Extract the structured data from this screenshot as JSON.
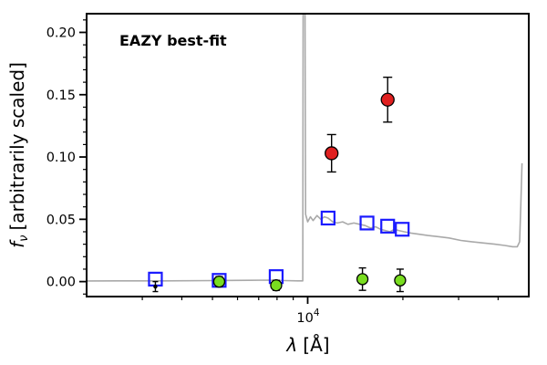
{
  "chart_data": {
    "type": "line+scatter",
    "annotation": "EAZY best-fit",
    "annotation_color": "#ee0000",
    "xlabel": {
      "symbol": "λ",
      "unit": "[Å]"
    },
    "ylabel": {
      "symbol": "f",
      "sub": "ν",
      "rest": "[arbitrarily scaled]"
    },
    "x_scale": "log",
    "xlim": [
      2000,
      50000
    ],
    "ylim": [
      -0.012,
      0.215
    ],
    "y_ticks": [
      0,
      0.05,
      0.1,
      0.15,
      0.2
    ],
    "y_tick_labels": [
      "0.00",
      "0.05",
      "0.10",
      "0.15",
      "0.20"
    ],
    "y_minor_ticks": [
      -0.01,
      0.01,
      0.02,
      0.03,
      0.04,
      0.06,
      0.07,
      0.08,
      0.09,
      0.11,
      0.12,
      0.13,
      0.14,
      0.16,
      0.17,
      0.18,
      0.19,
      0.21
    ],
    "x_major_tick": {
      "value": 10000,
      "base": "10",
      "exp": "4"
    },
    "x_minor_ticks": [
      3000,
      4000,
      5000,
      6000,
      7000,
      8000,
      9000,
      20000,
      30000,
      40000
    ],
    "series": [
      {
        "name": "model-spectrum",
        "kind": "line",
        "color": "#a9a9a9",
        "points": [
          [
            2000,
            0.0005
          ],
          [
            3500,
            0.0006
          ],
          [
            5000,
            0.0008
          ],
          [
            6500,
            0.001
          ],
          [
            7500,
            0.0012
          ],
          [
            8500,
            0.0008
          ],
          [
            9300,
            0.0006
          ],
          [
            9650,
            0.0006
          ],
          [
            9700,
            0.42
          ],
          [
            9760,
            0.42
          ],
          [
            9850,
            0.054
          ],
          [
            10000,
            0.048
          ],
          [
            10200,
            0.052
          ],
          [
            10400,
            0.049
          ],
          [
            10700,
            0.053
          ],
          [
            11000,
            0.05
          ],
          [
            11300,
            0.052
          ],
          [
            11600,
            0.051
          ],
          [
            12000,
            0.048
          ],
          [
            12400,
            0.047
          ],
          [
            12900,
            0.048
          ],
          [
            13400,
            0.046
          ],
          [
            14000,
            0.047
          ],
          [
            14600,
            0.046
          ],
          [
            15200,
            0.045
          ],
          [
            15800,
            0.043
          ],
          [
            16400,
            0.044
          ],
          [
            17000,
            0.042
          ],
          [
            17600,
            0.041
          ],
          [
            18200,
            0.04
          ],
          [
            18800,
            0.042
          ],
          [
            19400,
            0.041
          ],
          [
            20200,
            0.04
          ],
          [
            21200,
            0.039
          ],
          [
            22500,
            0.038
          ],
          [
            24000,
            0.037
          ],
          [
            26000,
            0.036
          ],
          [
            28000,
            0.035
          ],
          [
            30500,
            0.033
          ],
          [
            33000,
            0.032
          ],
          [
            36000,
            0.031
          ],
          [
            39000,
            0.03
          ],
          [
            42000,
            0.029
          ],
          [
            44500,
            0.028
          ],
          [
            46000,
            0.028
          ],
          [
            46800,
            0.032
          ],
          [
            47200,
            0.062
          ],
          [
            47600,
            0.095
          ]
        ]
      },
      {
        "name": "model-photometry-square",
        "kind": "open-square",
        "color": "#1a1aff",
        "points": [
          [
            3300,
            0.002
          ],
          [
            5250,
            0.001
          ],
          [
            7950,
            0.004
          ],
          [
            11600,
            0.051
          ],
          [
            15400,
            0.047
          ],
          [
            17900,
            0.0445
          ],
          [
            19900,
            0.042
          ]
        ]
      },
      {
        "name": "observed-nondetection-green",
        "kind": "filled-circle",
        "color": "#79dd20",
        "size": 6,
        "cap": 4,
        "points": [
          [
            5250,
            0.0,
            0.004
          ],
          [
            7950,
            -0.003,
            0.004
          ],
          [
            14900,
            0.002,
            0.009
          ],
          [
            19600,
            0.001,
            0.009
          ]
        ]
      },
      {
        "name": "observed-faint-black",
        "kind": "small-point",
        "color": "#000000",
        "size": 2.2,
        "cap": 3,
        "points": [
          [
            3300,
            -0.004,
            0.004
          ]
        ]
      },
      {
        "name": "observed-detection-red",
        "kind": "filled-circle",
        "color": "#e02020",
        "size": 7,
        "cap": 5,
        "points": [
          [
            11900,
            0.103,
            0.015
          ],
          [
            17900,
            0.146,
            0.018
          ]
        ]
      }
    ]
  }
}
